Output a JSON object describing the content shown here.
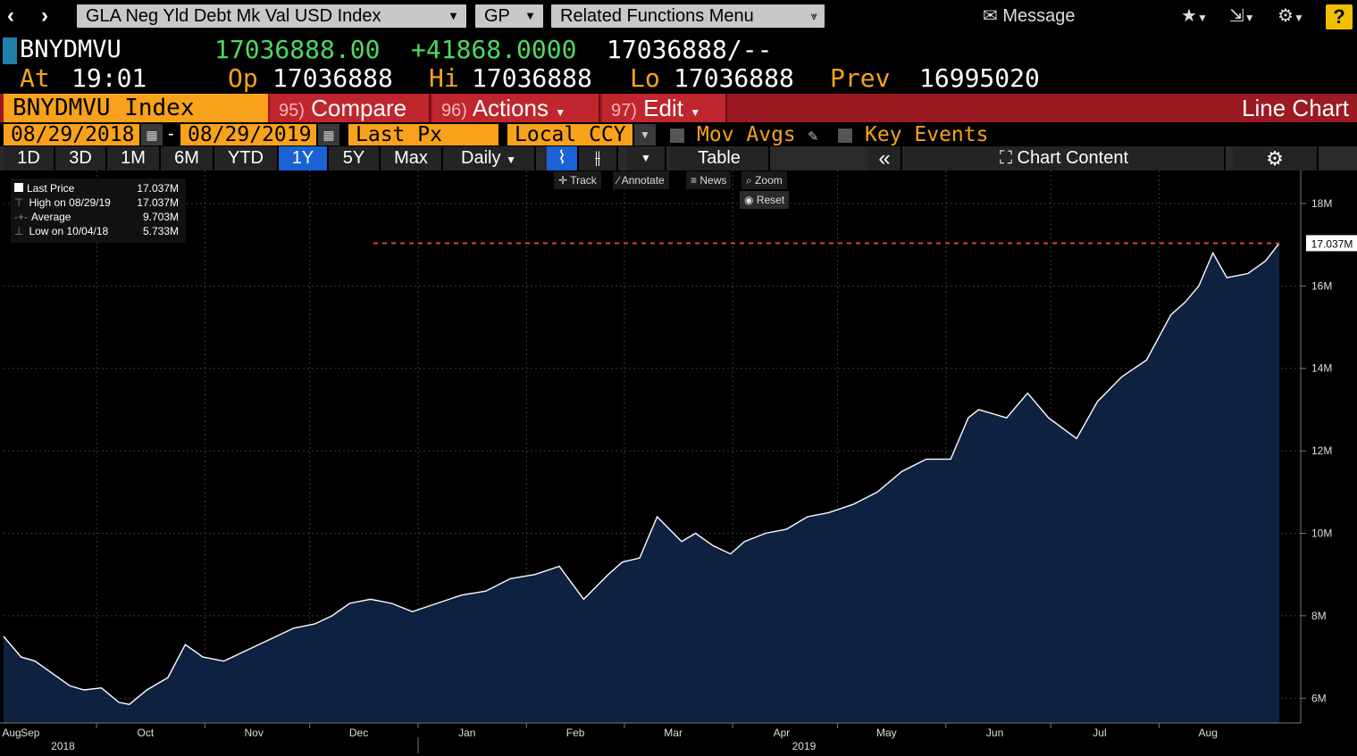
{
  "top_bar": {
    "security_menu": "GLA Neg Yld Debt Mk Val USD Index",
    "gp_menu": "GP",
    "related_menu": "Related Functions Menu",
    "message_label": "Message"
  },
  "quote": {
    "ticker": "BNYDMVU",
    "last": "17036888.00",
    "change": "+41868.0000",
    "bid_ask": "17036888/--",
    "at_label": "At",
    "time": "19:01",
    "op_label": "Op",
    "open": "17036888",
    "hi_label": "Hi",
    "high": "17036888",
    "lo_label": "Lo",
    "low": "17036888",
    "prev_label": "Prev",
    "prev": "16995020"
  },
  "command_bar": {
    "security": "BNYDMVU Index",
    "compare_num": "95)",
    "compare": "Compare",
    "actions_num": "96)",
    "actions": "Actions",
    "edit_num": "97)",
    "edit": "Edit",
    "chart_type": "Line Chart"
  },
  "params": {
    "start_date": "08/29/2018",
    "end_date": "08/29/2019",
    "field": "Last Px",
    "currency": "Local CCY",
    "mov_avgs": "Mov Avgs",
    "key_events": "Key Events"
  },
  "ranges": [
    "1D",
    "3D",
    "1M",
    "6M",
    "YTD",
    "1Y",
    "5Y",
    "Max"
  ],
  "selected_range": "1Y",
  "periodicity": "Daily",
  "table_label": "Table",
  "chart_content_label": "Chart Content",
  "tools": {
    "track": "Track",
    "annotate": "Annotate",
    "news": "News",
    "zoom": "Zoom",
    "reset": "Reset"
  },
  "legend": {
    "last_label": "Last Price",
    "last_value": "17.037M",
    "high_label": "High on 08/29/19",
    "high_value": "17.037M",
    "avg_label": "Average",
    "avg_value": "9.703M",
    "low_label": "Low on 10/04/18",
    "low_value": "5.733M"
  },
  "colors": {
    "area": "#0f2140",
    "line": "#ffffff",
    "last_line": "#e23b3b",
    "accent": "#f7a21a",
    "header_red": "#9c1a22"
  },
  "chart_data": {
    "type": "area",
    "title": "",
    "y_ticks": [
      "6M",
      "8M",
      "10M",
      "12M",
      "14M",
      "16M",
      "18M"
    ],
    "ylim": [
      5.4,
      18.8
    ],
    "y_unit": "M",
    "last_value_label": "17.037M",
    "last_value": 17.037,
    "x_month_labels": [
      "Aug",
      "Sep",
      "Oct",
      "Nov",
      "Dec",
      "Jan",
      "Feb",
      "Mar",
      "Apr",
      "May",
      "Jun",
      "Jul",
      "Aug"
    ],
    "x_year_labels": [
      "2018",
      "2019"
    ],
    "x": [
      "2018-08-29",
      "2018-09-03",
      "2018-09-07",
      "2018-09-12",
      "2018-09-17",
      "2018-09-21",
      "2018-09-26",
      "2018-10-01",
      "2018-10-04",
      "2018-10-09",
      "2018-10-15",
      "2018-10-20",
      "2018-10-25",
      "2018-10-31",
      "2018-11-05",
      "2018-11-10",
      "2018-11-15",
      "2018-11-20",
      "2018-11-26",
      "2018-12-01",
      "2018-12-06",
      "2018-12-12",
      "2018-12-18",
      "2018-12-24",
      "2018-12-31",
      "2019-01-07",
      "2019-01-14",
      "2019-01-21",
      "2019-01-28",
      "2019-02-04",
      "2019-02-11",
      "2019-02-18",
      "2019-02-22",
      "2019-02-27",
      "2019-03-04",
      "2019-03-11",
      "2019-03-15",
      "2019-03-20",
      "2019-03-25",
      "2019-03-29",
      "2019-04-04",
      "2019-04-10",
      "2019-04-16",
      "2019-04-22",
      "2019-04-29",
      "2019-05-06",
      "2019-05-13",
      "2019-05-20",
      "2019-05-27",
      "2019-06-01",
      "2019-06-04",
      "2019-06-08",
      "2019-06-12",
      "2019-06-18",
      "2019-06-24",
      "2019-07-02",
      "2019-07-08",
      "2019-07-15",
      "2019-07-22",
      "2019-07-29",
      "2019-08-02",
      "2019-08-06",
      "2019-08-10",
      "2019-08-14",
      "2019-08-20",
      "2019-08-25",
      "2019-08-29"
    ],
    "y": [
      7.5,
      7.0,
      6.9,
      6.6,
      6.3,
      6.2,
      6.25,
      5.9,
      5.85,
      6.2,
      6.5,
      7.3,
      7.0,
      6.9,
      7.1,
      7.3,
      7.5,
      7.7,
      7.8,
      8.0,
      8.3,
      8.4,
      8.3,
      8.1,
      8.3,
      8.5,
      8.6,
      8.9,
      9.0,
      9.2,
      8.4,
      9.0,
      9.3,
      9.4,
      10.4,
      9.8,
      10.0,
      9.7,
      9.5,
      9.8,
      10.0,
      10.1,
      10.4,
      10.5,
      10.7,
      11.0,
      11.5,
      11.8,
      11.8,
      12.8,
      13.0,
      12.9,
      12.8,
      13.4,
      12.8,
      12.3,
      13.2,
      13.8,
      14.2,
      15.3,
      15.6,
      16.0,
      16.8,
      16.2,
      16.3,
      16.6,
      17.037
    ]
  }
}
